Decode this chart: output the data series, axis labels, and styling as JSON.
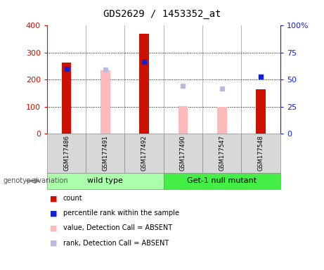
{
  "title": "GDS2629 / 1453352_at",
  "samples": [
    "GSM177486",
    "GSM177491",
    "GSM177492",
    "GSM177490",
    "GSM177547",
    "GSM177548"
  ],
  "group_labels": [
    "wild type",
    "Get-1 null mutant"
  ],
  "count_values": [
    262,
    null,
    370,
    null,
    null,
    165
  ],
  "absent_value_values": [
    null,
    235,
    null,
    103,
    98,
    null
  ],
  "percentile_rank_values": [
    240,
    null,
    265,
    null,
    null,
    212
  ],
  "absent_rank_values": [
    null,
    237,
    null,
    178,
    168,
    null
  ],
  "left_ylim": [
    0,
    400
  ],
  "right_ylim": [
    0,
    100
  ],
  "left_yticks": [
    0,
    100,
    200,
    300,
    400
  ],
  "right_yticks": [
    0,
    25,
    50,
    75,
    100
  ],
  "right_yticklabels": [
    "0",
    "25",
    "50",
    "75",
    "100%"
  ],
  "color_count": "#cc1100",
  "color_rank": "#1122cc",
  "color_absent_value": "#ffbbbb",
  "color_absent_rank": "#bbbbdd",
  "legend_labels": [
    "count",
    "percentile rank within the sample",
    "value, Detection Call = ABSENT",
    "rank, Detection Call = ABSENT"
  ],
  "legend_colors": [
    "#cc1100",
    "#1122cc",
    "#ffbbbb",
    "#bbbbdd"
  ],
  "bg_color": "#ffffff",
  "genotype_label": "genotype/variation",
  "wt_color": "#aaffaa",
  "mutant_color": "#44ee44",
  "sample_box_color": "#d8d8d8",
  "grid_dotted_values": [
    100,
    200,
    300
  ]
}
